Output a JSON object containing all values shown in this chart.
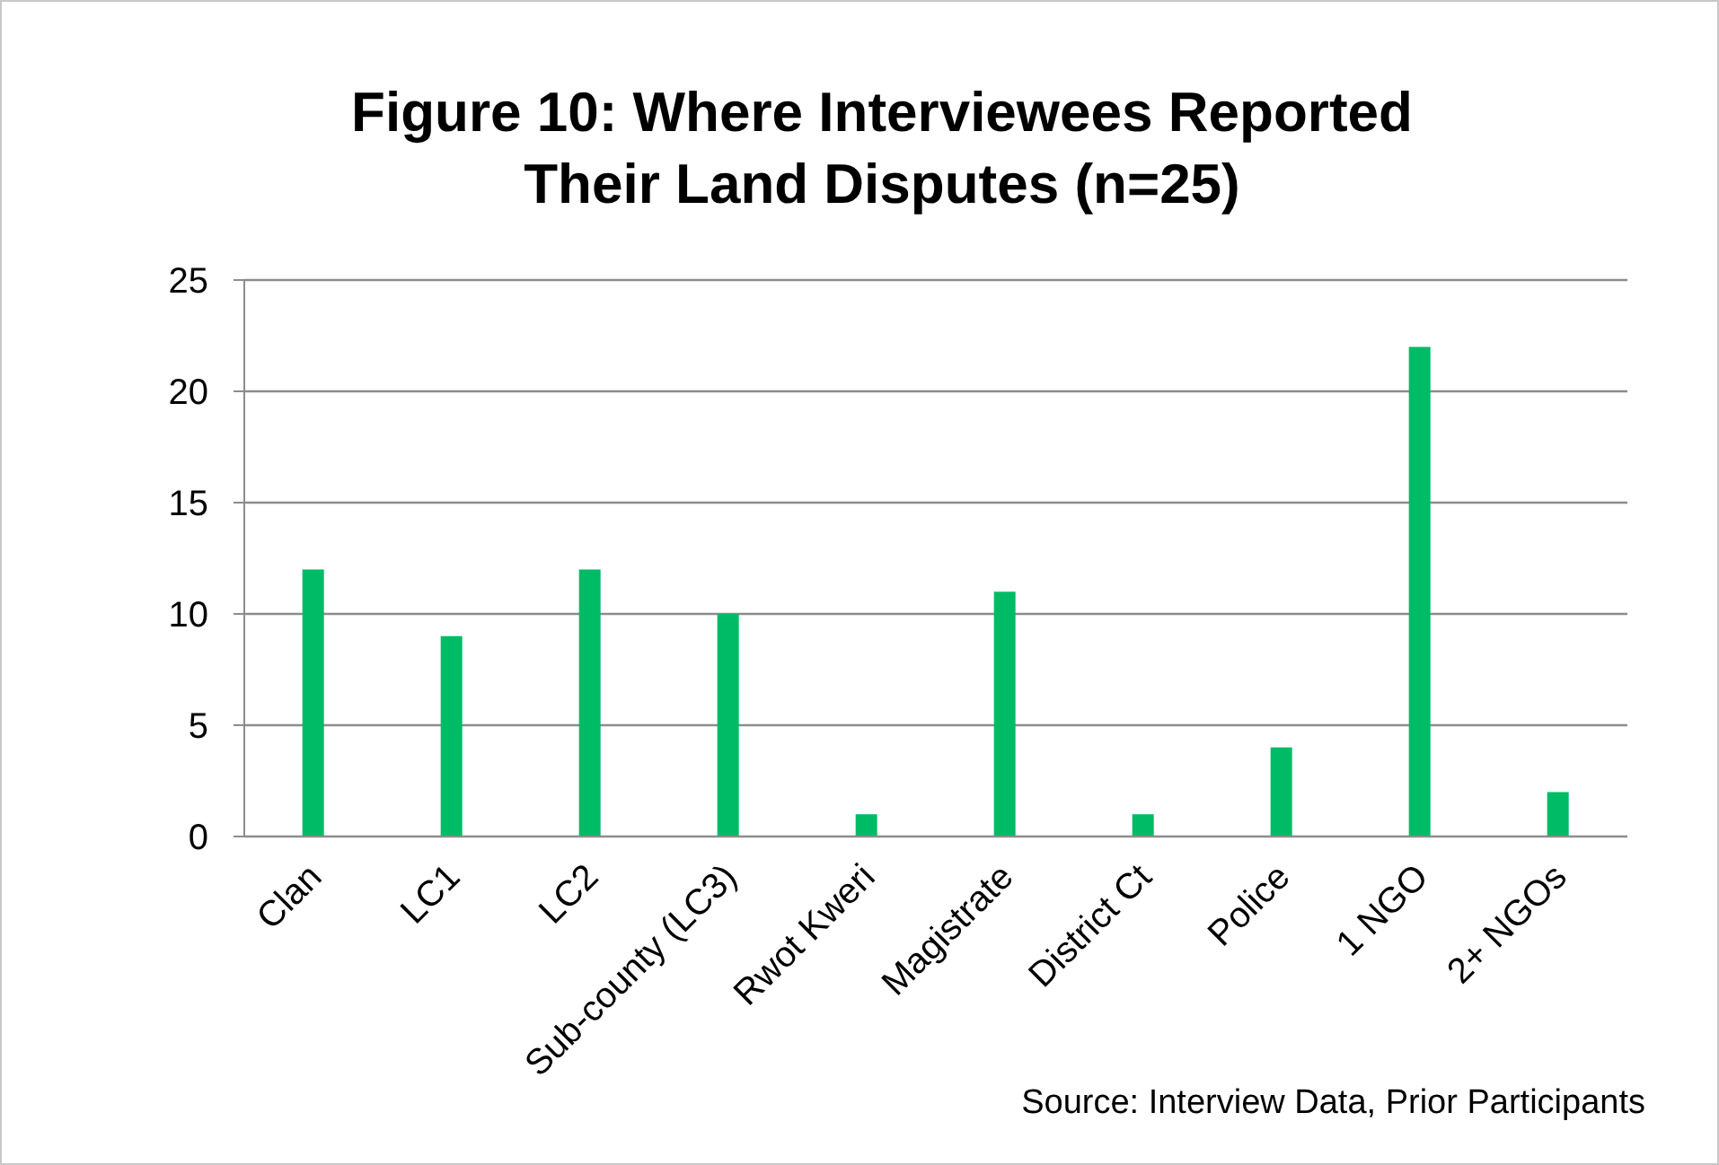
{
  "chart_data": {
    "type": "bar",
    "title": "Figure 10: Where Interviewees Reported Their Land Disputes (n=25)",
    "categories": [
      "Clan",
      "LC1",
      "LC2",
      "Sub-county (LC3)",
      "Rwot Kweri",
      "Magistrate",
      "District Ct",
      "Police",
      "1 NGO",
      "2+ NGOs"
    ],
    "values": [
      12,
      9,
      12,
      10,
      1,
      11,
      1,
      4,
      22,
      2
    ],
    "color": "#00bb66",
    "ylim": [
      0,
      25
    ],
    "yticks": [
      0,
      5,
      10,
      15,
      20,
      25
    ],
    "grid": "y",
    "annotations": [
      "Source: Interview Data, Prior Participants"
    ]
  }
}
